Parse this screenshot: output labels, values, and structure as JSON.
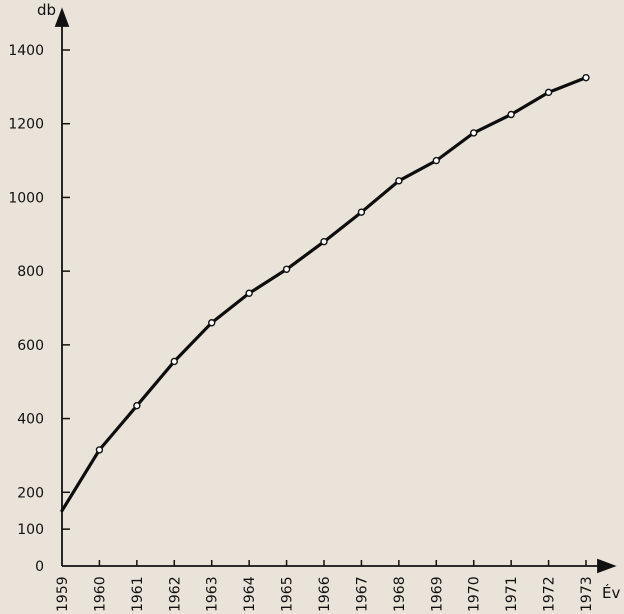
{
  "chart_data": {
    "type": "line",
    "title": "",
    "xlabel": "Év",
    "ylabel": "db",
    "x": [
      "1959",
      "1960",
      "1961",
      "1962",
      "1963",
      "1964",
      "1965",
      "1966",
      "1967",
      "1968",
      "1969",
      "1970",
      "1971",
      "1972",
      "1973"
    ],
    "y_ticks": [
      0,
      100,
      200,
      400,
      600,
      800,
      1000,
      1200,
      1400
    ],
    "ylim": [
      0,
      1400
    ],
    "series": [
      {
        "name": "",
        "values": [
          150,
          315,
          435,
          555,
          660,
          740,
          805,
          880,
          960,
          1045,
          1100,
          1175,
          1225,
          1285,
          1325
        ]
      }
    ],
    "grid": false,
    "legend": "none",
    "colors": {
      "background": "#e9e3d9",
      "line": "#0d0d0d",
      "marker_fill": "#ffffff",
      "axis": "#111111"
    }
  }
}
